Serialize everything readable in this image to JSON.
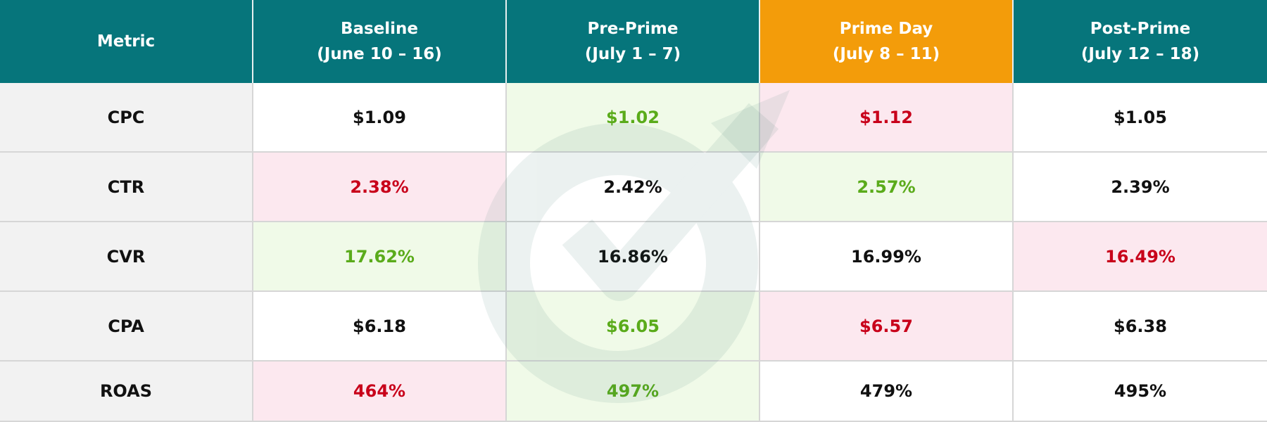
{
  "table": {
    "header": [
      {
        "title": "Metric"
      },
      {
        "title": "Baseline",
        "dates": "(June 10 – 16)"
      },
      {
        "title": "Pre-Prime",
        "dates": "(July 1 – 7)"
      },
      {
        "title": "Prime Day",
        "dates": "(July 8 – 11)"
      },
      {
        "title": "Post-Prime",
        "dates": "(July 12 – 18)"
      }
    ],
    "rows": [
      [
        "CPC",
        "$1.09",
        "$1.02",
        "$1.12",
        "$1.05"
      ],
      [
        "CTR",
        "2.38%",
        "2.42%",
        "2.57%",
        "2.39%"
      ],
      [
        "CVR",
        "17.62%",
        "16.86%",
        "16.99%",
        "16.49%"
      ],
      [
        "CPA",
        "$6.18",
        "$6.05",
        "$6.57",
        "$6.38"
      ],
      [
        "ROAS",
        "464%",
        "497%",
        "479%",
        "495%"
      ]
    ]
  }
}
